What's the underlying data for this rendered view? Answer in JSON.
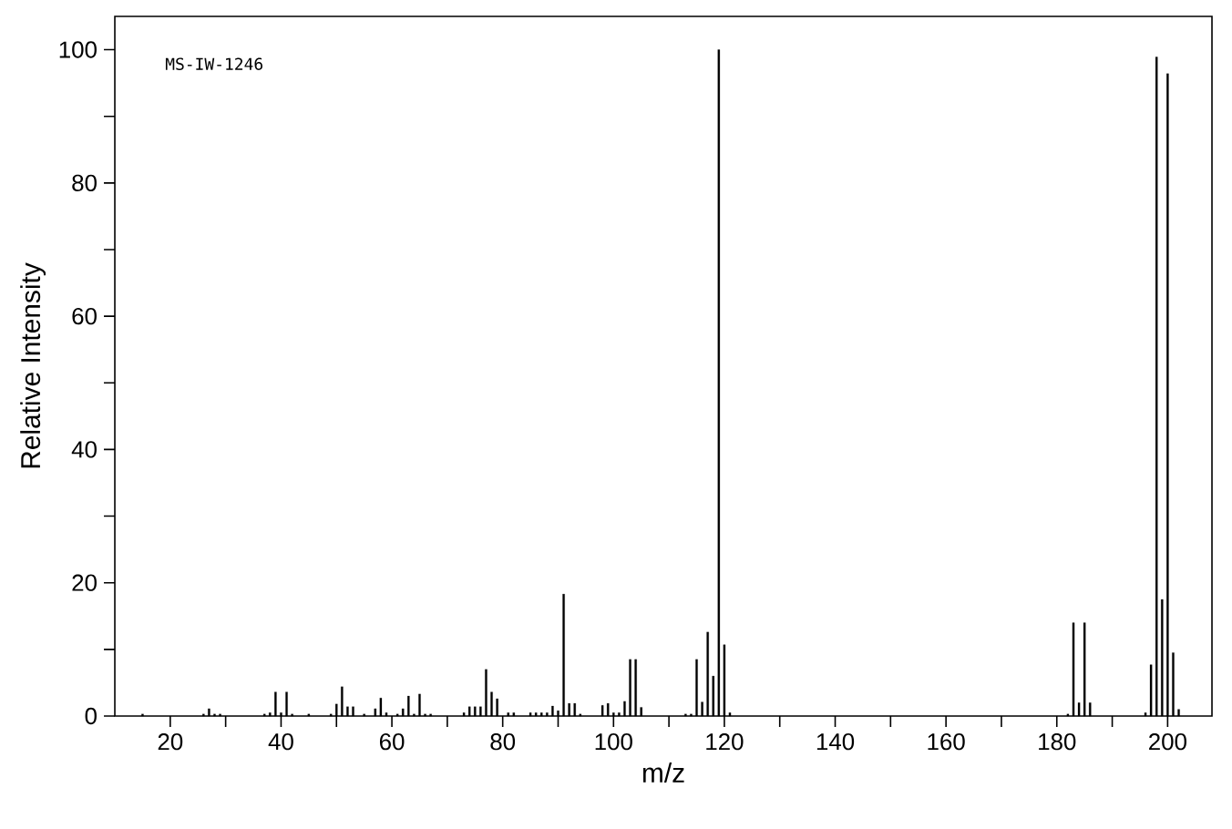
{
  "chart_data": {
    "type": "bar",
    "xlabel": "m/z",
    "ylabel": "Relative Intensity",
    "annotations": [
      "MS-IW-1246"
    ],
    "x": [
      15,
      26,
      27,
      28,
      29,
      37,
      38,
      39,
      40,
      41,
      42,
      45,
      49,
      50,
      51,
      52,
      53,
      55,
      57,
      58,
      59,
      61,
      62,
      63,
      64,
      65,
      66,
      67,
      73,
      74,
      75,
      76,
      77,
      78,
      79,
      81,
      82,
      85,
      86,
      87,
      88,
      89,
      90,
      91,
      92,
      93,
      94,
      98,
      99,
      100,
      101,
      102,
      103,
      104,
      105,
      113,
      114,
      115,
      116,
      117,
      118,
      119,
      120,
      121,
      182,
      183,
      184,
      185,
      186,
      196,
      197,
      198,
      199,
      200,
      201,
      202
    ],
    "values": [
      0.3,
      0.3,
      1.1,
      0.3,
      0.3,
      0.3,
      0.5,
      3.6,
      0.5,
      3.6,
      0.3,
      0.3,
      0.3,
      1.8,
      4.4,
      1.4,
      1.4,
      0.3,
      1.1,
      2.7,
      0.5,
      0.3,
      1.1,
      3.0,
      0.3,
      3.3,
      0.3,
      0.3,
      0.5,
      1.4,
      1.4,
      1.4,
      7.0,
      3.6,
      2.6,
      0.5,
      0.5,
      0.5,
      0.5,
      0.5,
      0.5,
      1.5,
      0.8,
      18.3,
      1.9,
      1.9,
      0.3,
      1.6,
      1.9,
      0.5,
      0.5,
      2.2,
      8.5,
      8.5,
      1.3,
      0.3,
      0.3,
      8.5,
      2.1,
      12.6,
      6.0,
      100,
      10.7,
      0.5,
      0.3,
      14.0,
      2.0,
      14.0,
      2.0,
      0.5,
      7.7,
      98.9,
      17.5,
      96.4,
      9.5,
      1.0
    ],
    "color": "#000000",
    "xlim": [
      10,
      208
    ],
    "ylim": [
      0,
      105
    ],
    "xticks": [
      20,
      {
        "value": 30,
        "label": null
      },
      40,
      {
        "value": 50,
        "label": null
      },
      60,
      {
        "value": 70,
        "label": null
      },
      80,
      {
        "value": 90,
        "label": null
      },
      100,
      {
        "value": 110,
        "label": null
      },
      120,
      {
        "value": 130,
        "label": null
      },
      140,
      {
        "value": 150,
        "label": null
      },
      160,
      {
        "value": 170,
        "label": null
      },
      180,
      {
        "value": 190,
        "label": null
      },
      200
    ],
    "yticks": [
      0,
      {
        "value": 10,
        "label": null
      },
      20,
      {
        "value": 30,
        "label": null
      },
      40,
      {
        "value": 50,
        "label": null
      },
      60,
      {
        "value": 70,
        "label": null
      },
      80,
      {
        "value": 90,
        "label": null
      },
      100
    ],
    "grid": false
  }
}
